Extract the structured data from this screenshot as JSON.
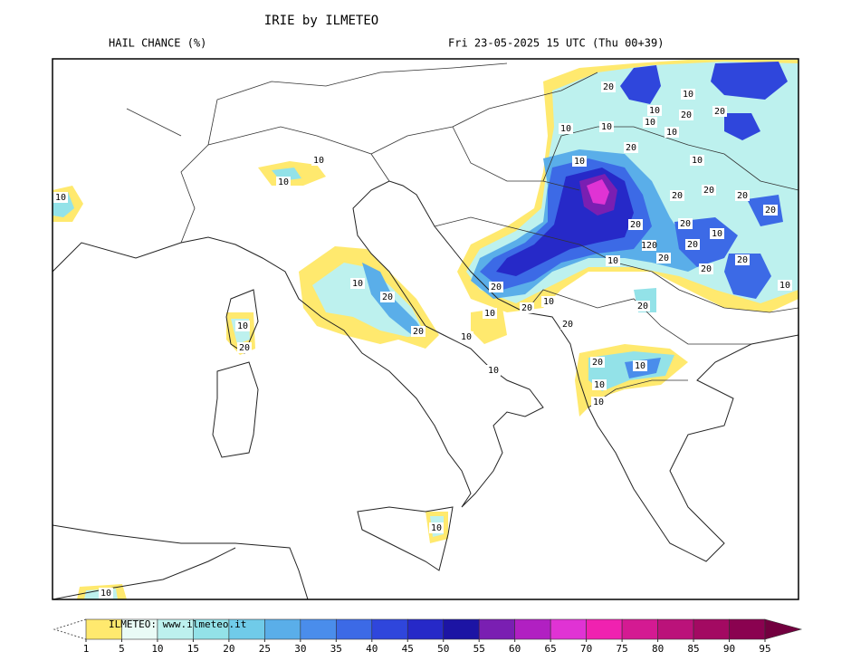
{
  "header": {
    "title": "IRIE by ILMETEO",
    "field": "HAIL CHANCE (%)",
    "valid_time": "Fri 23-05-2025 15 UTC (Thu 00+39)"
  },
  "map": {
    "contour_labels": [
      10,
      10,
      10,
      10,
      10,
      20,
      20,
      10,
      10,
      10,
      10,
      20,
      10,
      20,
      10,
      10,
      10,
      20,
      10,
      10,
      20,
      10,
      20,
      10,
      20,
      20,
      20,
      20,
      20,
      10,
      20,
      20,
      120,
      20,
      20,
      20,
      10,
      20,
      20,
      10,
      20,
      10,
      20,
      20,
      10,
      10,
      10,
      10
    ]
  },
  "colorbar": {
    "ticks": [
      1,
      5,
      10,
      15,
      20,
      25,
      30,
      35,
      40,
      45,
      50,
      55,
      60,
      65,
      70,
      75,
      80,
      85,
      90,
      95
    ],
    "colors": [
      "#ffe96e",
      "#e9fbf6",
      "#bdf1ee",
      "#93e2e8",
      "#70cbe9",
      "#5aaee9",
      "#4a8deb",
      "#3c6ae6",
      "#2f46dc",
      "#2629c8",
      "#1c14a4",
      "#7a1fb2",
      "#b120c2",
      "#e033d4",
      "#f022b0",
      "#d41a92",
      "#bb127a",
      "#a30a62",
      "#8a0250"
    ],
    "over_color": "#72003f",
    "credit": "ILMETEO: www.ilmeteo.it"
  }
}
